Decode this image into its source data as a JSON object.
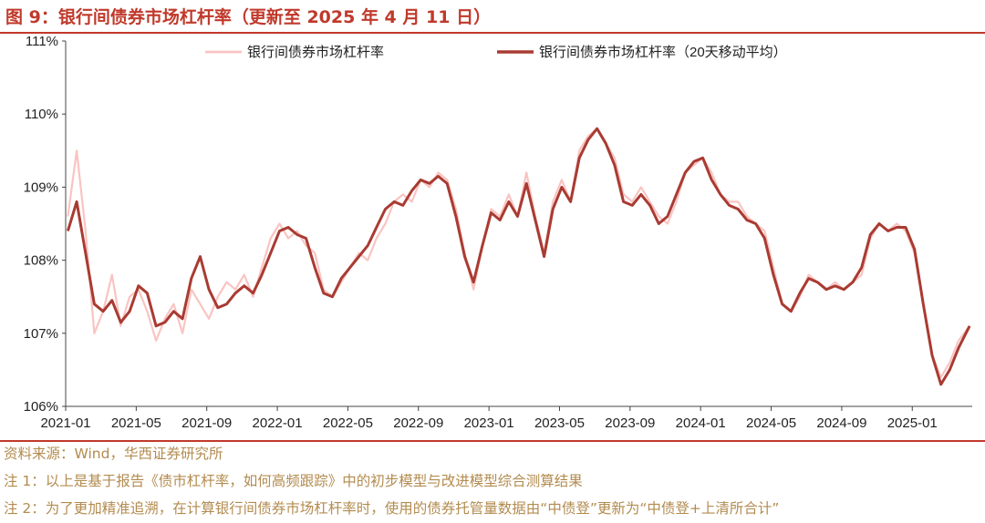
{
  "title": "图 9：银行间债券市场杠杆率（更新至 2025 年 4 月 11 日）",
  "footer": {
    "source": "资料来源：Wind，华西证券研究所",
    "note1": "注 1：以上是基于报告《债市杠杆率，如何高频跟踪》中的初步模型与改进模型综合测算结果",
    "note2": "注 2：为了更加精准追溯，在计算银行间债券市场杠杆率时，使用的债券托管量数据由“中债登”更新为“中债登+上清所合计”"
  },
  "colors": {
    "raw": "#f9c4c2",
    "ma": "#a93b32",
    "accent": "#c0392b",
    "footer": "#b38b4f"
  },
  "chart_data": {
    "type": "line",
    "title": "",
    "xlabel": "",
    "ylabel": "",
    "x_ticks": [
      "2021-01",
      "2021-05",
      "2021-09",
      "2022-01",
      "2022-05",
      "2022-09",
      "2023-01",
      "2023-05",
      "2023-09",
      "2024-01",
      "2024-05",
      "2024-09",
      "2025-01"
    ],
    "y_ticks": [
      "106%",
      "107%",
      "108%",
      "109%",
      "110%",
      "111%"
    ],
    "ylim": [
      106,
      111
    ],
    "x_range": [
      "2021-01",
      "2025-04"
    ],
    "legend_position": "top",
    "series": [
      {
        "name": "银行间债券市场杠杆率",
        "points": [
          [
            "2021-01",
            108.6
          ],
          [
            "2021-01",
            109.5
          ],
          [
            "2021-02",
            108.4
          ],
          [
            "2021-02",
            107.0
          ],
          [
            "2021-03",
            107.3
          ],
          [
            "2021-03",
            107.8
          ],
          [
            "2021-04",
            107.1
          ],
          [
            "2021-04",
            107.5
          ],
          [
            "2021-05",
            107.6
          ],
          [
            "2021-05",
            107.3
          ],
          [
            "2021-06",
            106.9
          ],
          [
            "2021-06",
            107.2
          ],
          [
            "2021-07",
            107.4
          ],
          [
            "2021-07",
            107.0
          ],
          [
            "2021-08",
            107.6
          ],
          [
            "2021-08",
            107.4
          ],
          [
            "2021-09",
            107.2
          ],
          [
            "2021-09",
            107.5
          ],
          [
            "2021-10",
            107.7
          ],
          [
            "2021-10",
            107.6
          ],
          [
            "2021-11",
            107.8
          ],
          [
            "2021-11",
            107.5
          ],
          [
            "2021-12",
            107.9
          ],
          [
            "2021-12",
            108.3
          ],
          [
            "2022-01",
            108.5
          ],
          [
            "2022-01",
            108.3
          ],
          [
            "2022-02",
            108.4
          ],
          [
            "2022-02",
            108.2
          ],
          [
            "2022-03",
            108.1
          ],
          [
            "2022-03",
            107.6
          ],
          [
            "2022-04",
            107.5
          ],
          [
            "2022-04",
            107.7
          ],
          [
            "2022-05",
            107.9
          ],
          [
            "2022-05",
            108.1
          ],
          [
            "2022-06",
            108.0
          ],
          [
            "2022-06",
            108.3
          ],
          [
            "2022-07",
            108.5
          ],
          [
            "2022-07",
            108.8
          ],
          [
            "2022-08",
            108.9
          ],
          [
            "2022-08",
            108.8
          ],
          [
            "2022-09",
            109.1
          ],
          [
            "2022-09",
            109.0
          ],
          [
            "2022-10",
            109.2
          ],
          [
            "2022-10",
            109.1
          ],
          [
            "2022-11",
            108.7
          ],
          [
            "2022-11",
            108.1
          ],
          [
            "2022-12",
            107.6
          ],
          [
            "2022-12",
            108.2
          ],
          [
            "2023-01",
            108.7
          ],
          [
            "2023-01",
            108.6
          ],
          [
            "2023-02",
            108.9
          ],
          [
            "2023-02",
            108.6
          ],
          [
            "2023-03",
            109.2
          ],
          [
            "2023-03",
            108.6
          ],
          [
            "2023-04",
            108.1
          ],
          [
            "2023-04",
            108.8
          ],
          [
            "2023-05",
            109.1
          ],
          [
            "2023-05",
            108.8
          ],
          [
            "2023-06",
            109.5
          ],
          [
            "2023-06",
            109.7
          ],
          [
            "2023-07",
            109.8
          ],
          [
            "2023-07",
            109.6
          ],
          [
            "2023-08",
            109.4
          ],
          [
            "2023-08",
            108.9
          ],
          [
            "2023-09",
            108.8
          ],
          [
            "2023-09",
            109.0
          ],
          [
            "2023-10",
            108.8
          ],
          [
            "2023-10",
            108.6
          ],
          [
            "2023-11",
            108.5
          ],
          [
            "2023-11",
            108.8
          ],
          [
            "2023-12",
            109.2
          ],
          [
            "2023-12",
            109.3
          ],
          [
            "2024-01",
            109.4
          ],
          [
            "2024-01",
            109.2
          ],
          [
            "2024-02",
            108.9
          ],
          [
            "2024-02",
            108.8
          ],
          [
            "2024-03",
            108.8
          ],
          [
            "2024-03",
            108.6
          ],
          [
            "2024-04",
            108.5
          ],
          [
            "2024-04",
            108.4
          ],
          [
            "2024-05",
            107.9
          ],
          [
            "2024-05",
            107.4
          ],
          [
            "2024-06",
            107.3
          ],
          [
            "2024-06",
            107.5
          ],
          [
            "2024-07",
            107.8
          ],
          [
            "2024-07",
            107.7
          ],
          [
            "2024-08",
            107.6
          ],
          [
            "2024-08",
            107.7
          ],
          [
            "2024-09",
            107.6
          ],
          [
            "2024-09",
            107.7
          ],
          [
            "2024-10",
            107.8
          ],
          [
            "2024-10",
            108.3
          ],
          [
            "2024-11",
            108.5
          ],
          [
            "2024-11",
            108.4
          ],
          [
            "2024-12",
            108.5
          ],
          [
            "2024-12",
            108.4
          ],
          [
            "2025-01",
            108.1
          ],
          [
            "2025-01",
            107.4
          ],
          [
            "2025-02",
            106.7
          ],
          [
            "2025-02",
            106.4
          ],
          [
            "2025-03",
            106.6
          ],
          [
            "2025-03",
            106.9
          ],
          [
            "2025-04",
            107.1
          ]
        ]
      },
      {
        "name": "银行间债券市场杠杆率（20天移动平均）",
        "points": [
          [
            "2021-01",
            108.4
          ],
          [
            "2021-01",
            108.8
          ],
          [
            "2021-02",
            108.1
          ],
          [
            "2021-02",
            107.4
          ],
          [
            "2021-03",
            107.3
          ],
          [
            "2021-03",
            107.45
          ],
          [
            "2021-04",
            107.15
          ],
          [
            "2021-04",
            107.3
          ],
          [
            "2021-05",
            107.65
          ],
          [
            "2021-05",
            107.55
          ],
          [
            "2021-06",
            107.1
          ],
          [
            "2021-06",
            107.15
          ],
          [
            "2021-07",
            107.3
          ],
          [
            "2021-07",
            107.2
          ],
          [
            "2021-08",
            107.75
          ],
          [
            "2021-08",
            108.05
          ],
          [
            "2021-09",
            107.6
          ],
          [
            "2021-09",
            107.35
          ],
          [
            "2021-10",
            107.4
          ],
          [
            "2021-10",
            107.55
          ],
          [
            "2021-11",
            107.65
          ],
          [
            "2021-11",
            107.55
          ],
          [
            "2021-12",
            107.8
          ],
          [
            "2021-12",
            108.1
          ],
          [
            "2022-01",
            108.4
          ],
          [
            "2022-01",
            108.45
          ],
          [
            "2022-02",
            108.35
          ],
          [
            "2022-02",
            108.3
          ],
          [
            "2022-03",
            107.9
          ],
          [
            "2022-03",
            107.55
          ],
          [
            "2022-04",
            107.5
          ],
          [
            "2022-04",
            107.75
          ],
          [
            "2022-05",
            107.9
          ],
          [
            "2022-05",
            108.05
          ],
          [
            "2022-06",
            108.2
          ],
          [
            "2022-06",
            108.45
          ],
          [
            "2022-07",
            108.7
          ],
          [
            "2022-07",
            108.8
          ],
          [
            "2022-08",
            108.75
          ],
          [
            "2022-08",
            108.95
          ],
          [
            "2022-09",
            109.1
          ],
          [
            "2022-09",
            109.05
          ],
          [
            "2022-10",
            109.15
          ],
          [
            "2022-10",
            109.05
          ],
          [
            "2022-11",
            108.6
          ],
          [
            "2022-11",
            108.05
          ],
          [
            "2022-12",
            107.7
          ],
          [
            "2022-12",
            108.2
          ],
          [
            "2023-01",
            108.65
          ],
          [
            "2023-01",
            108.55
          ],
          [
            "2023-02",
            108.8
          ],
          [
            "2023-02",
            108.6
          ],
          [
            "2023-03",
            109.05
          ],
          [
            "2023-03",
            108.55
          ],
          [
            "2023-04",
            108.05
          ],
          [
            "2023-04",
            108.7
          ],
          [
            "2023-05",
            109.0
          ],
          [
            "2023-05",
            108.8
          ],
          [
            "2023-06",
            109.4
          ],
          [
            "2023-06",
            109.65
          ],
          [
            "2023-07",
            109.8
          ],
          [
            "2023-07",
            109.6
          ],
          [
            "2023-08",
            109.3
          ],
          [
            "2023-08",
            108.8
          ],
          [
            "2023-09",
            108.75
          ],
          [
            "2023-09",
            108.9
          ],
          [
            "2023-10",
            108.75
          ],
          [
            "2023-10",
            108.5
          ],
          [
            "2023-11",
            108.6
          ],
          [
            "2023-11",
            108.9
          ],
          [
            "2023-12",
            109.2
          ],
          [
            "2023-12",
            109.35
          ],
          [
            "2024-01",
            109.4
          ],
          [
            "2024-01",
            109.1
          ],
          [
            "2024-02",
            108.9
          ],
          [
            "2024-02",
            108.75
          ],
          [
            "2024-03",
            108.7
          ],
          [
            "2024-03",
            108.55
          ],
          [
            "2024-04",
            108.5
          ],
          [
            "2024-04",
            108.3
          ],
          [
            "2024-05",
            107.8
          ],
          [
            "2024-05",
            107.4
          ],
          [
            "2024-06",
            107.3
          ],
          [
            "2024-06",
            107.55
          ],
          [
            "2024-07",
            107.75
          ],
          [
            "2024-07",
            107.7
          ],
          [
            "2024-08",
            107.6
          ],
          [
            "2024-08",
            107.65
          ],
          [
            "2024-09",
            107.6
          ],
          [
            "2024-09",
            107.7
          ],
          [
            "2024-10",
            107.9
          ],
          [
            "2024-10",
            108.35
          ],
          [
            "2024-11",
            108.5
          ],
          [
            "2024-11",
            108.4
          ],
          [
            "2024-12",
            108.45
          ],
          [
            "2024-12",
            108.45
          ],
          [
            "2025-01",
            108.15
          ],
          [
            "2025-01",
            107.4
          ],
          [
            "2025-02",
            106.7
          ],
          [
            "2025-02",
            106.3
          ],
          [
            "2025-03",
            106.5
          ],
          [
            "2025-03",
            106.8
          ],
          [
            "2025-04",
            107.1
          ]
        ]
      }
    ]
  }
}
